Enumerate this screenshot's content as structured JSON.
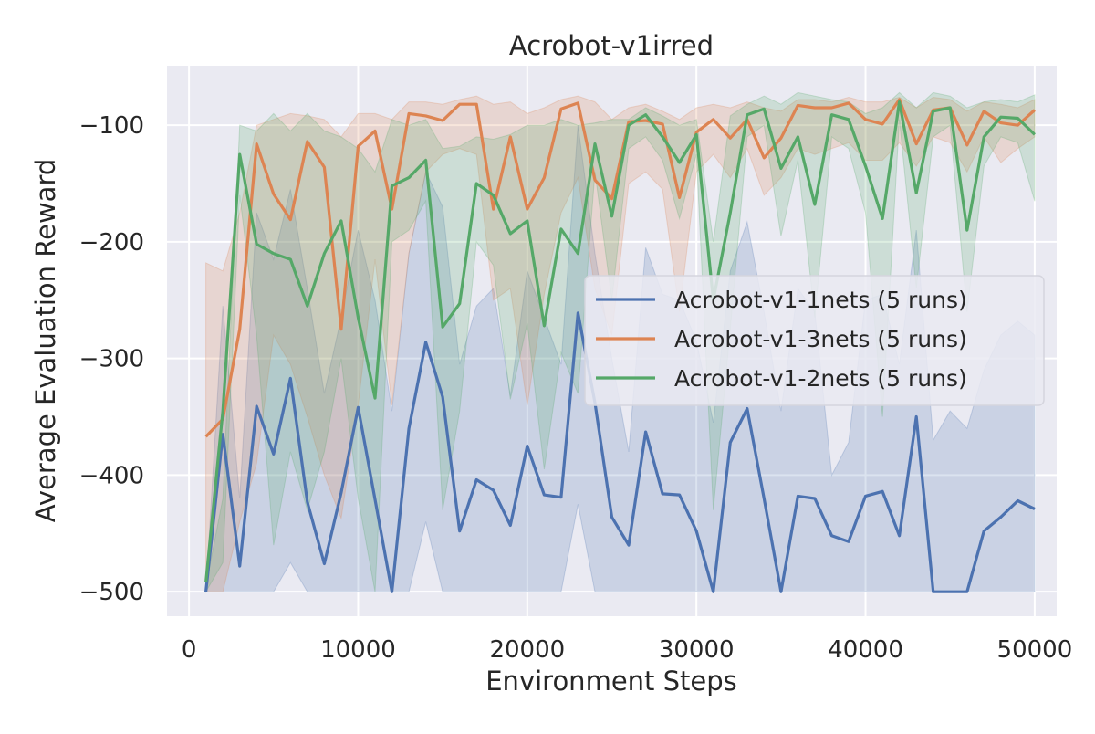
{
  "chart_data": {
    "type": "line",
    "title": "Acrobot-v1irred",
    "xlabel": "Environment Steps",
    "ylabel": "Average Evaluation Reward",
    "xlim": [
      -1300,
      51300
    ],
    "ylim": [
      -521,
      -49
    ],
    "xticks": [
      0,
      10000,
      20000,
      30000,
      40000,
      50000
    ],
    "xtick_labels": [
      "0",
      "10000",
      "20000",
      "30000",
      "40000",
      "50000"
    ],
    "yticks": [
      -500,
      -400,
      -300,
      -200,
      -100
    ],
    "ytick_labels": [
      "−500",
      "−400",
      "−300",
      "−200",
      "−100"
    ],
    "grid": true,
    "legend_position": "center-right",
    "background": "#eaeaf2",
    "x": [
      1000,
      2000,
      3000,
      4000,
      5000,
      6000,
      7000,
      8000,
      9000,
      10000,
      11000,
      12000,
      13000,
      14000,
      15000,
      16000,
      17000,
      18000,
      19000,
      20000,
      21000,
      22000,
      23000,
      24000,
      25000,
      26000,
      27000,
      28000,
      29000,
      30000,
      31000,
      32000,
      33000,
      34000,
      35000,
      36000,
      37000,
      38000,
      39000,
      40000,
      41000,
      42000,
      43000,
      44000,
      45000,
      46000,
      47000,
      48000,
      49000,
      50000
    ],
    "series": [
      {
        "name": "Acrobot-v1-1nets (5 runs)",
        "color": "#4c72b0",
        "values": [
          -500,
          -365,
          -478,
          -341,
          -382,
          -317,
          -423,
          -476,
          -415,
          -342,
          -421,
          -500,
          -360,
          -286,
          -333,
          -448,
          -404,
          -413,
          -443,
          -375,
          -417,
          -419,
          -261,
          -338,
          -436,
          -460,
          -363,
          -416,
          -417,
          -448,
          -500,
          -372,
          -343,
          -420,
          -500,
          -418,
          -420,
          -452,
          -457,
          -418,
          -414,
          -452,
          -350,
          -500,
          -500,
          -500,
          -448,
          -436,
          -422,
          -429
        ],
        "upper": [
          -500,
          -255,
          -420,
          -175,
          -215,
          -155,
          -240,
          -330,
          -265,
          -190,
          -250,
          -345,
          -210,
          -140,
          -170,
          -305,
          -255,
          -240,
          -332,
          -225,
          -265,
          -305,
          -100,
          -210,
          -300,
          -380,
          -205,
          -245,
          -250,
          -285,
          -355,
          -225,
          -183,
          -260,
          -345,
          -240,
          -260,
          -400,
          -372,
          -250,
          -245,
          -305,
          -190,
          -370,
          -345,
          -360,
          -310,
          -280,
          -268,
          -280
        ],
        "lower": [
          -500,
          -500,
          -500,
          -500,
          -500,
          -475,
          -500,
          -500,
          -500,
          -500,
          -500,
          -500,
          -500,
          -440,
          -500,
          -500,
          -500,
          -500,
          -500,
          -500,
          -500,
          -500,
          -425,
          -500,
          -500,
          -500,
          -500,
          -500,
          -500,
          -500,
          -500,
          -500,
          -500,
          -500,
          -500,
          -500,
          -500,
          -500,
          -500,
          -500,
          -500,
          -500,
          -500,
          -500,
          -500,
          -500,
          -500,
          -500,
          -500,
          -500
        ]
      },
      {
        "name": "Acrobot-v1-3nets (5 runs)",
        "color": "#dd8452",
        "values": [
          -367,
          -352,
          -275,
          -116,
          -159,
          -181,
          -114,
          -136,
          -275,
          -118,
          -105,
          -172,
          -90,
          -92,
          -96,
          -82,
          -82,
          -172,
          -110,
          -172,
          -145,
          -86,
          -81,
          -147,
          -163,
          -97,
          -96,
          -99,
          -162,
          -106,
          -95,
          -111,
          -95,
          -128,
          -111,
          -83,
          -85,
          -85,
          -81,
          -95,
          -99,
          -78,
          -116,
          -87,
          -85,
          -117,
          -88,
          -98,
          -100,
          -87
        ],
        "upper": [
          -218,
          -225,
          -175,
          -100,
          -95,
          -90,
          -92,
          -95,
          -110,
          -90,
          -90,
          -95,
          -80,
          -80,
          -82,
          -78,
          -75,
          -82,
          -80,
          -90,
          -85,
          -78,
          -75,
          -80,
          -95,
          -85,
          -82,
          -88,
          -95,
          -85,
          -82,
          -85,
          -80,
          -85,
          -88,
          -78,
          -78,
          -80,
          -76,
          -80,
          -80,
          -76,
          -85,
          -76,
          -78,
          -88,
          -80,
          -82,
          -85,
          -78
        ],
        "lower": [
          -500,
          -500,
          -440,
          -390,
          -280,
          -305,
          -350,
          -400,
          -437,
          -340,
          -215,
          -340,
          -210,
          -140,
          -125,
          -120,
          -125,
          -250,
          -240,
          -340,
          -245,
          -175,
          -145,
          -240,
          -280,
          -150,
          -140,
          -155,
          -260,
          -140,
          -125,
          -145,
          -120,
          -160,
          -145,
          -120,
          -125,
          -120,
          -115,
          -130,
          -130,
          -115,
          -135,
          -110,
          -115,
          -140,
          -110,
          -132,
          -120,
          -110
        ]
      },
      {
        "name": "Acrobot-v1-2nets (5 runs)",
        "color": "#55a868",
        "values": [
          -492,
          -345,
          -125,
          -202,
          -210,
          -215,
          -255,
          -210,
          -182,
          -265,
          -334,
          -152,
          -145,
          -130,
          -273,
          -253,
          -150,
          -160,
          -193,
          -182,
          -272,
          -189,
          -210,
          -116,
          -178,
          -100,
          -91,
          -110,
          -132,
          -108,
          -250,
          -175,
          -91,
          -86,
          -137,
          -110,
          -168,
          -91,
          -95,
          -135,
          -180,
          -80,
          -158,
          -88,
          -85,
          -190,
          -110,
          -93,
          -94,
          -108
        ],
        "upper": [
          -495,
          -420,
          -100,
          -105,
          -90,
          -105,
          -90,
          -105,
          -110,
          -120,
          -140,
          -95,
          -100,
          -95,
          -120,
          -118,
          -110,
          -112,
          -108,
          -100,
          -100,
          -95,
          -100,
          -98,
          -95,
          -95,
          -85,
          -92,
          -100,
          -95,
          -200,
          -92,
          -82,
          -75,
          -82,
          -72,
          -75,
          -78,
          -80,
          -90,
          -85,
          -72,
          -85,
          -72,
          -75,
          -85,
          -80,
          -78,
          -80,
          -74
        ],
        "lower": [
          -500,
          -475,
          -160,
          -280,
          -460,
          -380,
          -430,
          -380,
          -300,
          -420,
          -500,
          -200,
          -190,
          -165,
          -430,
          -345,
          -200,
          -220,
          -335,
          -270,
          -395,
          -295,
          -330,
          -140,
          -250,
          -120,
          -110,
          -130,
          -180,
          -125,
          -430,
          -275,
          -110,
          -100,
          -195,
          -130,
          -265,
          -110,
          -120,
          -175,
          -350,
          -95,
          -240,
          -110,
          -100,
          -260,
          -135,
          -110,
          -115,
          -165
        ]
      }
    ]
  }
}
